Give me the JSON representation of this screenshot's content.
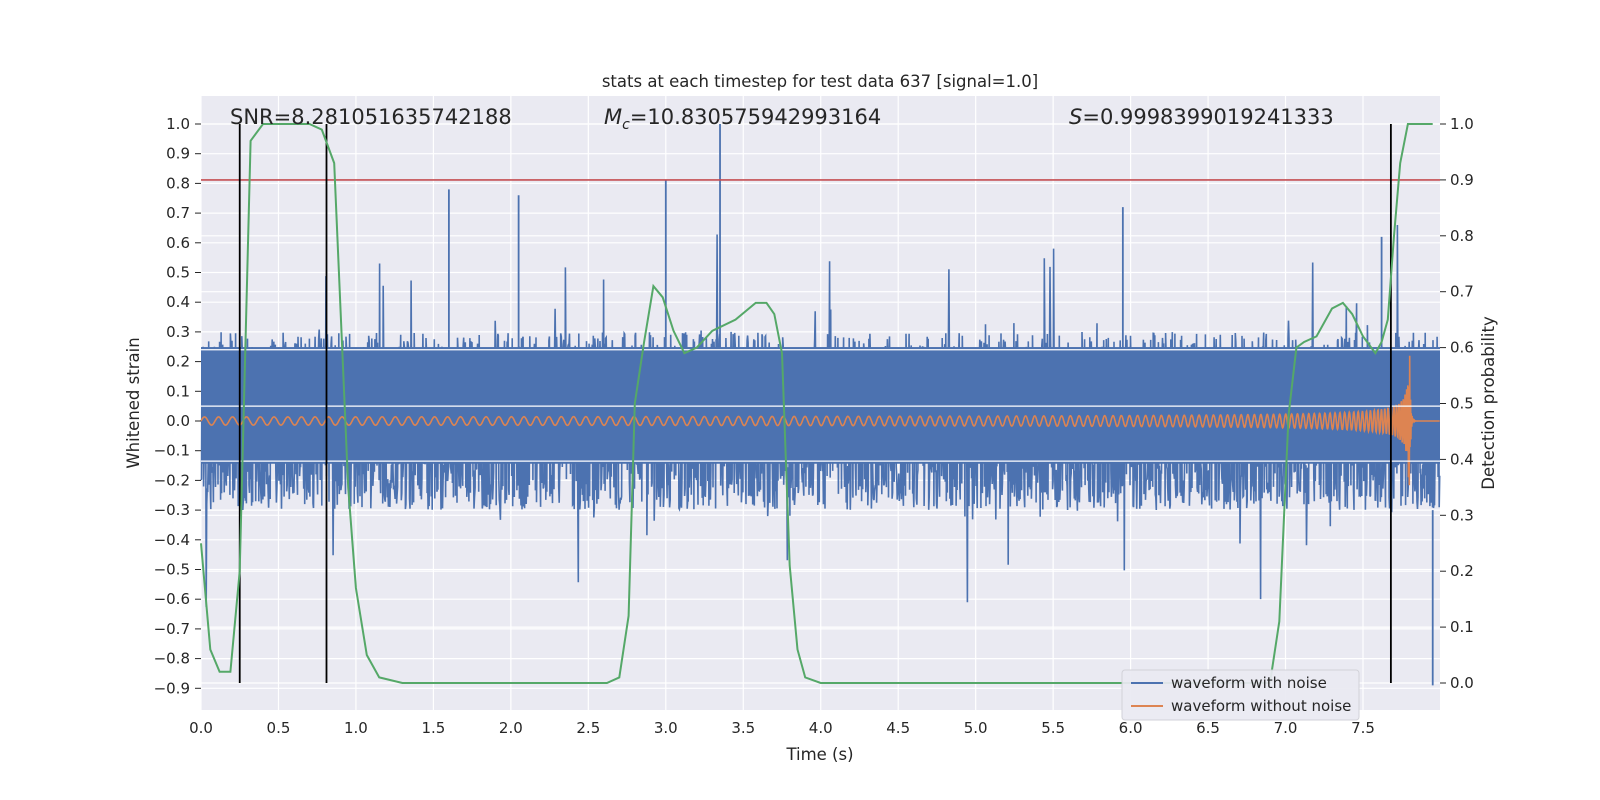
{
  "chart_data": {
    "type": "line",
    "title": "stats at each timestep for test data 637 [signal=1.0]",
    "xlabel": "Time (s)",
    "ylabel": "Whitened strain",
    "y2label": "Detection probability",
    "xlim": [
      0.0,
      8.0
    ],
    "ylim": [
      -0.99,
      1.09
    ],
    "y2lim": [
      -0.05,
      1.03
    ],
    "xticks": [
      "0.0",
      "0.5",
      "1.0",
      "1.5",
      "2.0",
      "2.5",
      "3.0",
      "3.5",
      "4.0",
      "4.5",
      "5.0",
      "5.5",
      "6.0",
      "6.5",
      "7.0",
      "7.5"
    ],
    "yticks": [
      "1.0",
      "0.9",
      "0.8",
      "0.7",
      "0.6",
      "0.5",
      "0.4",
      "0.3",
      "0.2",
      "0.1",
      "0.0",
      "−0.1",
      "−0.2",
      "−0.3",
      "−0.4",
      "−0.5",
      "−0.6",
      "−0.7",
      "−0.8",
      "−0.9"
    ],
    "y2ticks": [
      "1.0",
      "0.9",
      "0.8",
      "0.7",
      "0.6",
      "0.5",
      "0.4",
      "0.3",
      "0.2",
      "0.1",
      "0.0"
    ],
    "annotations": {
      "snr": "SNR=8.281051635742188",
      "mc_symbol": "M",
      "mc_sub": "c",
      "mc_value": "=10.830575942993164",
      "s_symbol": "S",
      "s_value": "=0.9998399019241333"
    },
    "grid": true,
    "legend_position": "lower right",
    "threshold": 0.9,
    "vertical_lines": [
      0.25,
      0.81,
      7.68
    ],
    "series": [
      {
        "name": "waveform with noise",
        "color": "#4c72b0",
        "envelope": {
          "core_half_width": 0.3,
          "peak": 1.0,
          "min": -0.89
        }
      },
      {
        "name": "waveform without noise",
        "color": "#dd8452",
        "chirp": {
          "t_merge": 7.8,
          "peak_amplitude": 0.27,
          "start_amplitude": 0.01
        }
      },
      {
        "name": "detection probability",
        "color": "#55a868",
        "x": [
          0.0,
          0.06,
          0.12,
          0.19,
          0.25,
          0.32,
          0.4,
          0.5,
          0.6,
          0.7,
          0.78,
          0.86,
          0.95,
          1.0,
          1.07,
          1.15,
          1.3,
          1.6,
          2.0,
          2.4,
          2.62,
          2.7,
          2.76,
          2.8,
          2.86,
          2.92,
          2.98,
          3.05,
          3.12,
          3.2,
          3.3,
          3.45,
          3.58,
          3.65,
          3.7,
          3.75,
          3.8,
          3.85,
          3.9,
          4.0,
          4.2,
          5.0,
          6.0,
          6.9,
          6.96,
          7.02,
          7.07,
          7.12,
          7.2,
          7.3,
          7.37,
          7.43,
          7.5,
          7.58,
          7.62,
          7.66,
          7.7,
          7.74,
          7.79,
          7.85,
          7.95
        ],
        "y": [
          0.25,
          0.06,
          0.02,
          0.02,
          0.2,
          0.97,
          1.0,
          1.0,
          1.0,
          1.0,
          0.99,
          0.93,
          0.35,
          0.17,
          0.05,
          0.01,
          0.0,
          0.0,
          0.0,
          0.0,
          0.0,
          0.01,
          0.12,
          0.5,
          0.61,
          0.71,
          0.69,
          0.63,
          0.59,
          0.6,
          0.63,
          0.65,
          0.68,
          0.68,
          0.66,
          0.59,
          0.21,
          0.06,
          0.01,
          0.0,
          0.0,
          0.0,
          0.0,
          0.0,
          0.11,
          0.48,
          0.6,
          0.61,
          0.62,
          0.67,
          0.68,
          0.66,
          0.62,
          0.59,
          0.61,
          0.65,
          0.8,
          0.93,
          1.0,
          1.0,
          1.0
        ]
      }
    ]
  }
}
